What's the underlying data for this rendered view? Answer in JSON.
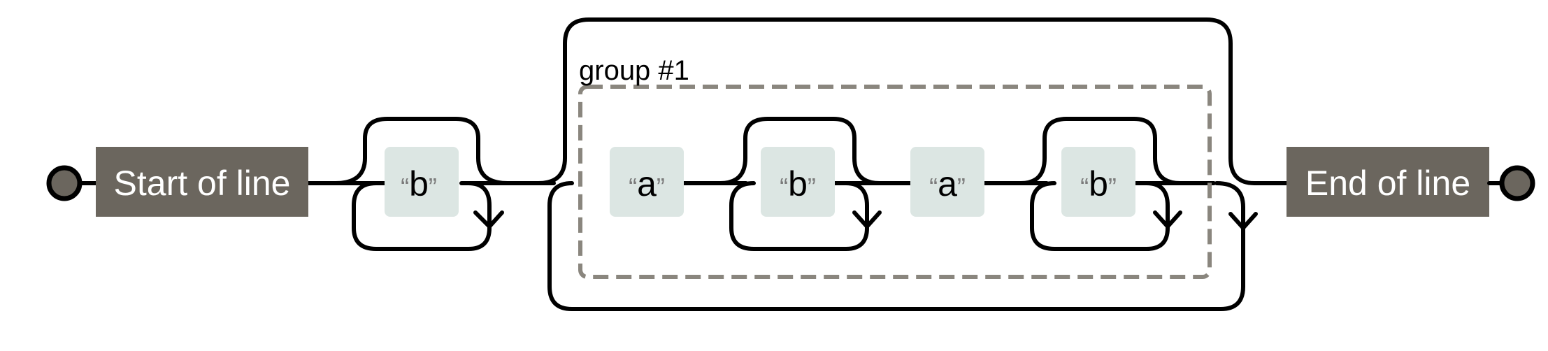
{
  "diagram": {
    "start_label": "Start of line",
    "end_label": "End of line",
    "group_label": "group #1",
    "literals": [
      {
        "open_quote": "“",
        "value": "b",
        "close_quote": "”"
      },
      {
        "open_quote": "“",
        "value": "a",
        "close_quote": "”"
      },
      {
        "open_quote": "“",
        "value": "b",
        "close_quote": "”"
      },
      {
        "open_quote": "“",
        "value": "a",
        "close_quote": "”"
      },
      {
        "open_quote": "“",
        "value": "b",
        "close_quote": "”"
      }
    ]
  },
  "colors": {
    "anchor_fill": "#6b665e",
    "literal_fill": "#dce6e3",
    "quote_color": "#7a7a7a",
    "group_border": "#8a867e",
    "endpoint_fill": "#6b665e"
  }
}
